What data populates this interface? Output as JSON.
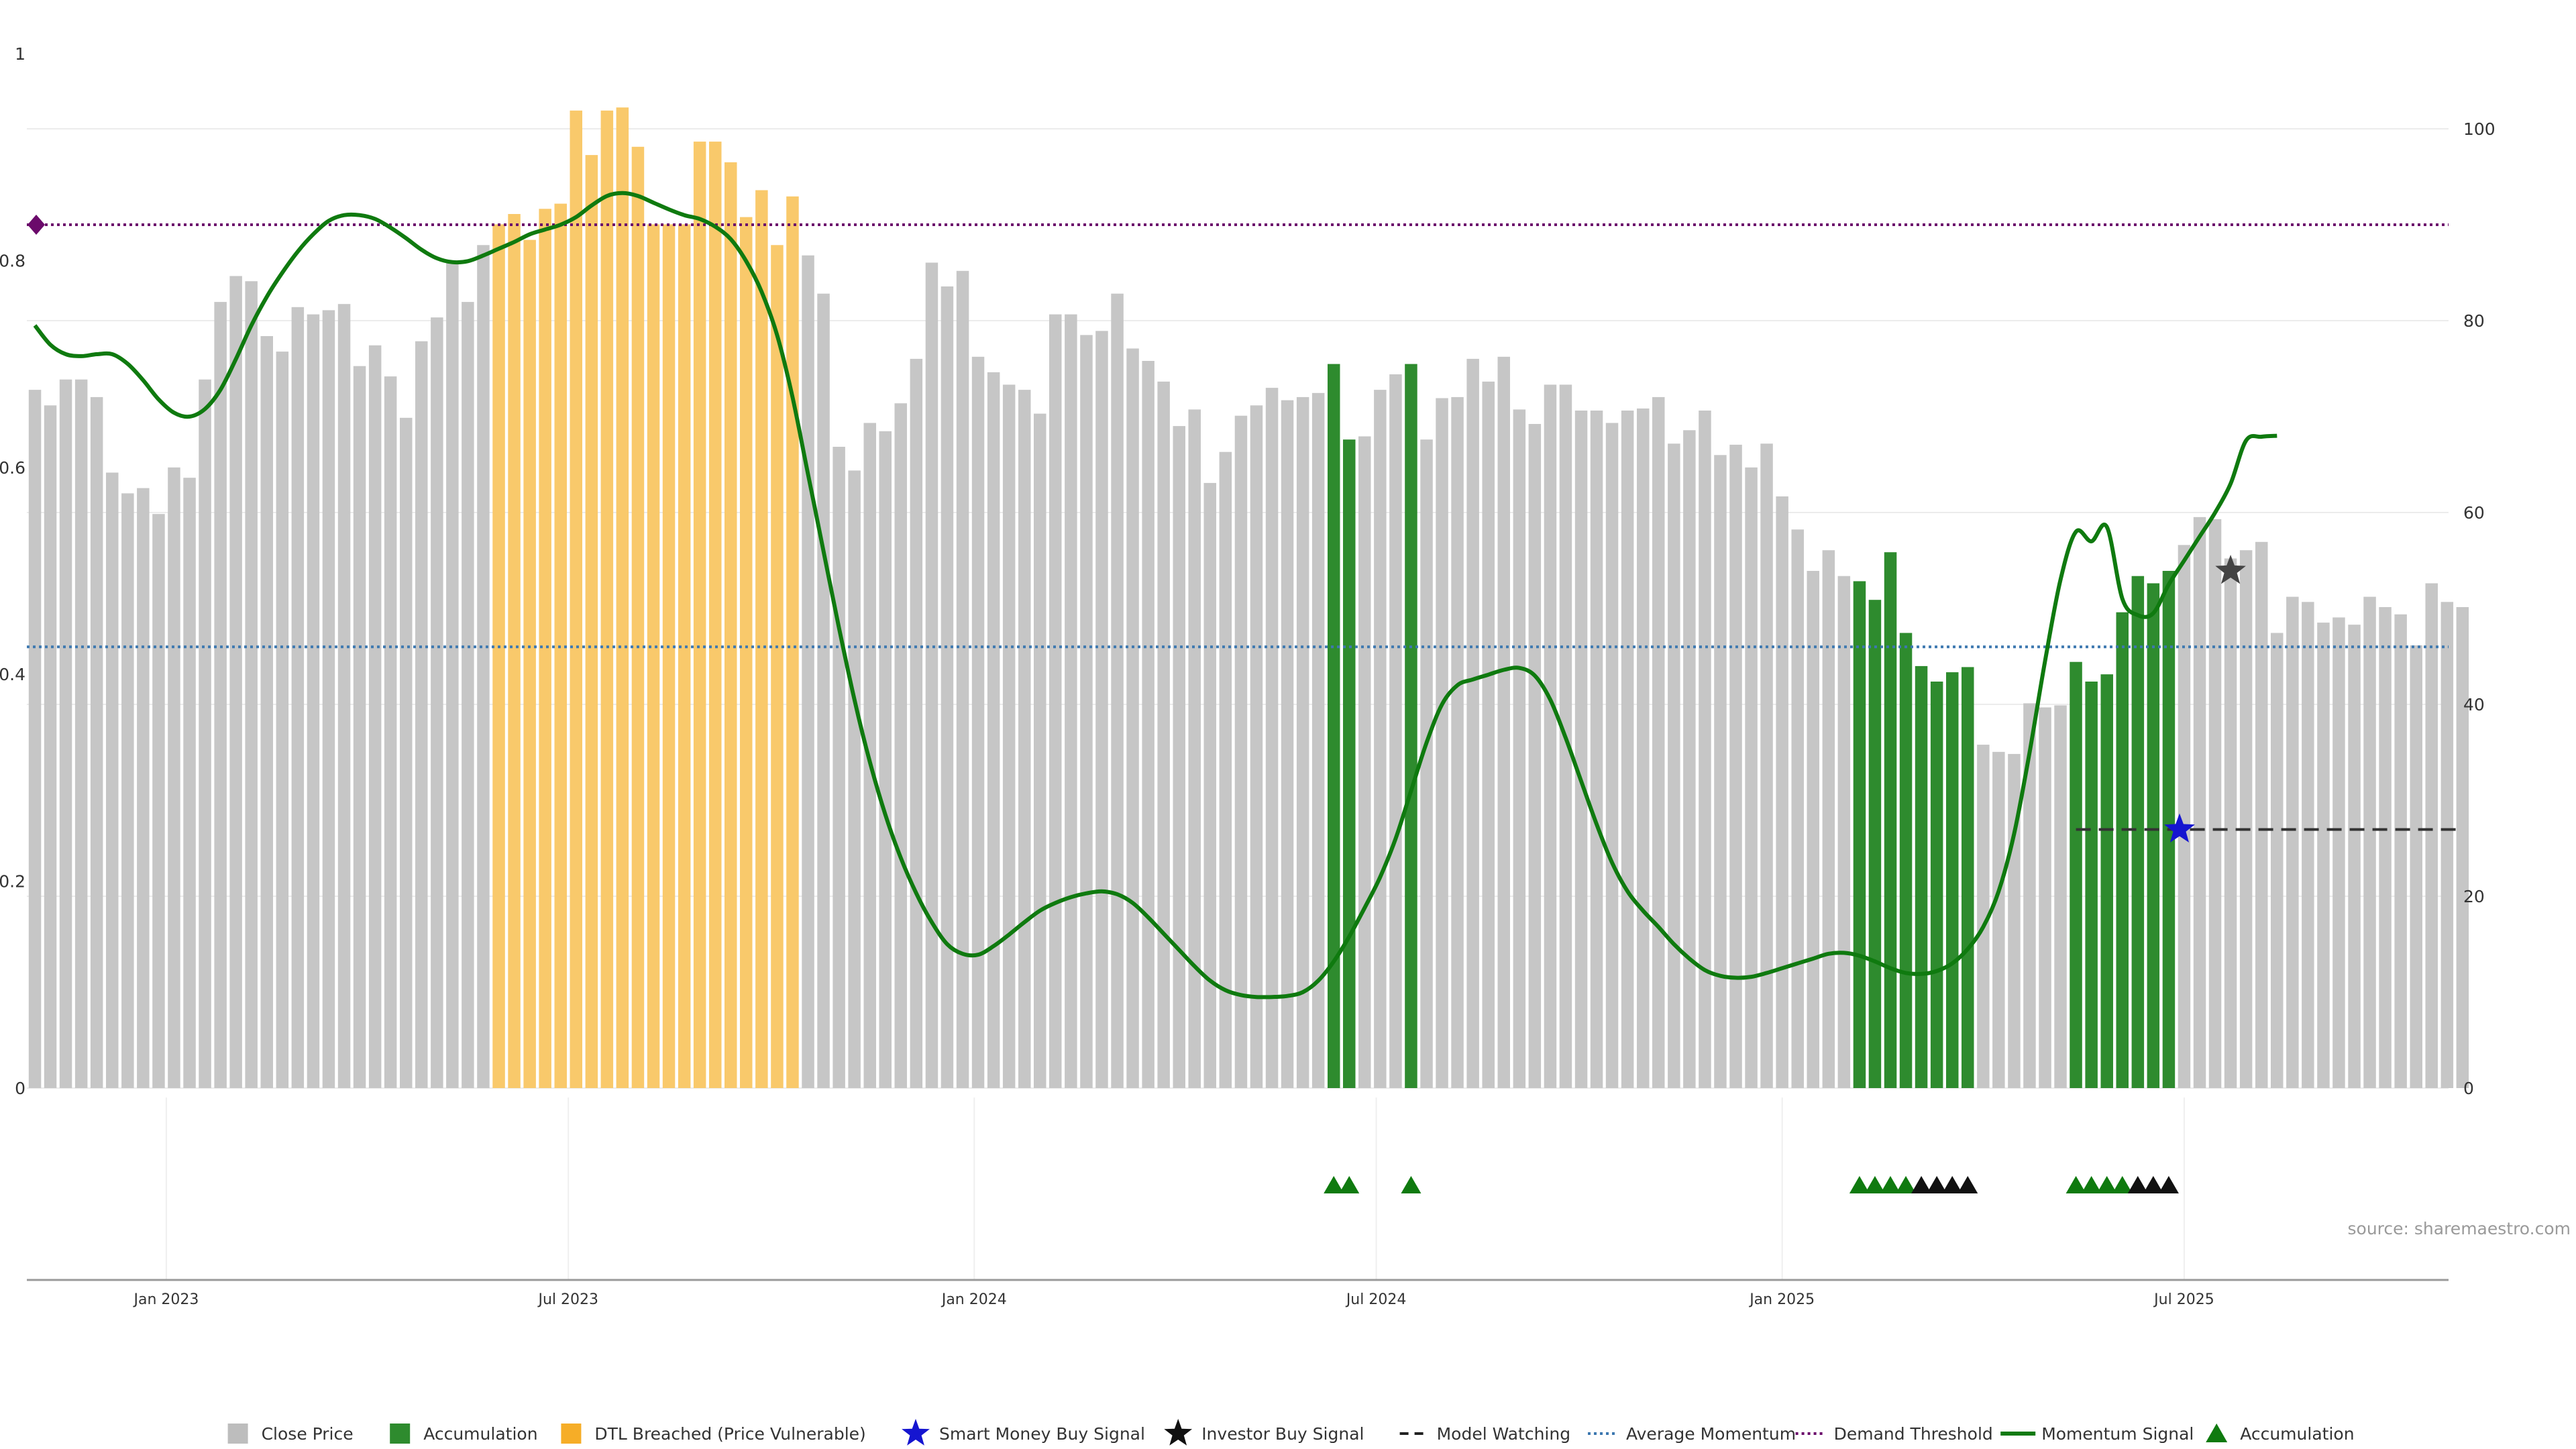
{
  "chart_data": {
    "type": "bar",
    "source": "source: sharemaestro.com",
    "y_left": {
      "min": 0,
      "max": 1,
      "ticks": [
        0,
        0.2,
        0.4,
        0.6,
        0.8,
        1
      ],
      "tick_labels": [
        "0",
        "0.2",
        "0.4",
        "0.6",
        "0.8",
        "1"
      ]
    },
    "y_right": {
      "min": 0,
      "max": 100,
      "ticks": [
        0,
        20,
        40,
        60,
        80,
        100
      ],
      "tick_labels": [
        "0",
        "20",
        "40",
        "60",
        "80",
        "100"
      ]
    },
    "x_ticks": [
      {
        "label": "Jan 2023",
        "index": 8.5
      },
      {
        "label": "Jul 2023",
        "index": 34.5
      },
      {
        "label": "Jan 2024",
        "index": 60.75
      },
      {
        "label": "Jul 2024",
        "index": 86.75
      },
      {
        "label": "Jan 2025",
        "index": 113
      },
      {
        "label": "Jul 2025",
        "index": 139
      }
    ],
    "bar_values": [
      0.675,
      0.66,
      0.685,
      0.685,
      0.668,
      0.595,
      0.575,
      0.58,
      0.555,
      0.6,
      0.59,
      0.685,
      0.76,
      0.785,
      0.78,
      0.727,
      0.712,
      0.755,
      0.748,
      0.752,
      0.758,
      0.698,
      0.718,
      0.688,
      0.648,
      0.722,
      0.745,
      0.8,
      0.76,
      0.815,
      0.835,
      0.845,
      0.82,
      0.85,
      0.855,
      0.945,
      0.902,
      0.945,
      0.948,
      0.91,
      0.835,
      0.835,
      0.835,
      0.915,
      0.915,
      0.895,
      0.842,
      0.868,
      0.815,
      0.862,
      0.805,
      0.768,
      0.62,
      0.597,
      0.643,
      0.635,
      0.662,
      0.705,
      0.798,
      0.775,
      0.79,
      0.707,
      0.692,
      0.68,
      0.675,
      0.652,
      0.748,
      0.748,
      0.728,
      0.732,
      0.768,
      0.715,
      0.703,
      0.683,
      0.64,
      0.656,
      0.585,
      0.615,
      0.65,
      0.66,
      0.677,
      0.665,
      0.668,
      0.672,
      0.7,
      0.627,
      0.63,
      0.675,
      0.69,
      0.7,
      0.627,
      0.667,
      0.668,
      0.705,
      0.683,
      0.707,
      0.656,
      0.642,
      0.68,
      0.68,
      0.655,
      0.655,
      0.643,
      0.655,
      0.657,
      0.668,
      0.623,
      0.636,
      0.655,
      0.612,
      0.622,
      0.6,
      0.623,
      0.572,
      0.54,
      0.5,
      0.52,
      0.495,
      0.49,
      0.472,
      0.518,
      0.44,
      0.408,
      0.393,
      0.402,
      0.407,
      0.332,
      0.325,
      0.323,
      0.372,
      0.368,
      0.37,
      0.412,
      0.393,
      0.4,
      0.46,
      0.495,
      0.488,
      0.5,
      0.525,
      0.552,
      0.55,
      0.512,
      0.52,
      0.528,
      0.44,
      0.475,
      0.47,
      0.45,
      0.455,
      0.448,
      0.475,
      0.465,
      0.458,
      0.428,
      0.488,
      0.47,
      0.465
    ],
    "series": [
      {
        "name": "Close Price",
        "kind": "bar",
        "color": "#c6c6c6",
        "indices": "all other bars"
      },
      {
        "name": "Accumulation",
        "kind": "bar",
        "color": "#2e8b2e",
        "indices": [
          84,
          85,
          89,
          118,
          119,
          120,
          121,
          122,
          123,
          124,
          125,
          132,
          133,
          134,
          135,
          136,
          137,
          138
        ]
      },
      {
        "name": "DTL Breached (Price Vulnerable)",
        "kind": "bar",
        "color": "#f9c96b",
        "indices": [
          30,
          31,
          32,
          33,
          34,
          35,
          36,
          37,
          38,
          39,
          40,
          41,
          42,
          43,
          44,
          45,
          46,
          47,
          48,
          49
        ]
      },
      {
        "name": "Smart Money Buy Signal",
        "kind": "marker",
        "color": "#1515d0",
        "points": [
          {
            "index": 138.7,
            "y": 0.25
          }
        ]
      },
      {
        "name": "Investor Buy Signal",
        "kind": "marker",
        "color": "#111111",
        "points": [
          {
            "index": 142,
            "y": 0.5
          }
        ]
      },
      {
        "name": "Model Watching",
        "kind": "line",
        "color": "#333333",
        "y": 0.25,
        "x_from_index": 132,
        "x_to_index": 157
      },
      {
        "name": "Average Momentum",
        "kind": "hline",
        "color": "#3d78b0",
        "y_right": 46
      },
      {
        "name": "Demand Threshold",
        "kind": "hline",
        "color": "#6b0a6b",
        "y_right": 90
      },
      {
        "name": "Momentum Signal",
        "kind": "line",
        "color": "#0f7a0f",
        "axis": "right",
        "points": [
          [
            0,
            79.5
          ],
          [
            1,
            77.5
          ],
          [
            2,
            76.5
          ],
          [
            3,
            76.3
          ],
          [
            4,
            76.5
          ],
          [
            5,
            76.5
          ],
          [
            6,
            75.5
          ],
          [
            7,
            73.8
          ],
          [
            8,
            71.8
          ],
          [
            9,
            70.4
          ],
          [
            10,
            70
          ],
          [
            11,
            70.8
          ],
          [
            12,
            72.8
          ],
          [
            13,
            76
          ],
          [
            14,
            79.5
          ],
          [
            15,
            82.5
          ],
          [
            16,
            85
          ],
          [
            17,
            87.2
          ],
          [
            18,
            89
          ],
          [
            19,
            90.4
          ],
          [
            20,
            91
          ],
          [
            21,
            91
          ],
          [
            22,
            90.6
          ],
          [
            23,
            89.7
          ],
          [
            24,
            88.6
          ],
          [
            25,
            87.4
          ],
          [
            26,
            86.5
          ],
          [
            27,
            86.1
          ],
          [
            28,
            86.2
          ],
          [
            29,
            86.8
          ],
          [
            30,
            87.5
          ],
          [
            31,
            88.2
          ],
          [
            32,
            89
          ],
          [
            33,
            89.5
          ],
          [
            34,
            90
          ],
          [
            35,
            90.8
          ],
          [
            36,
            92
          ],
          [
            37,
            93
          ],
          [
            38,
            93.3
          ],
          [
            39,
            93
          ],
          [
            40,
            92.3
          ],
          [
            41,
            91.6
          ],
          [
            42,
            91
          ],
          [
            43,
            90.6
          ],
          [
            44,
            89.8
          ],
          [
            45,
            88.5
          ],
          [
            46,
            86.2
          ],
          [
            47,
            83
          ],
          [
            48,
            78.5
          ],
          [
            49,
            72
          ],
          [
            50,
            64
          ],
          [
            51,
            56
          ],
          [
            52,
            48
          ],
          [
            53,
            40.5
          ],
          [
            54,
            34
          ],
          [
            55,
            28.5
          ],
          [
            56,
            24
          ],
          [
            57,
            20.3
          ],
          [
            58,
            17.3
          ],
          [
            59,
            15
          ],
          [
            60,
            14
          ],
          [
            61,
            13.9
          ],
          [
            62,
            14.8
          ],
          [
            63,
            16
          ],
          [
            64,
            17.3
          ],
          [
            65,
            18.5
          ],
          [
            66,
            19.3
          ],
          [
            67,
            19.9
          ],
          [
            68,
            20.3
          ],
          [
            69,
            20.5
          ],
          [
            70,
            20.2
          ],
          [
            71,
            19.3
          ],
          [
            72,
            17.8
          ],
          [
            73,
            16.1
          ],
          [
            74,
            14.4
          ],
          [
            75,
            12.7
          ],
          [
            76,
            11.2
          ],
          [
            77,
            10.2
          ],
          [
            78,
            9.7
          ],
          [
            79,
            9.5
          ],
          [
            80,
            9.5
          ],
          [
            81,
            9.6
          ],
          [
            82,
            10
          ],
          [
            83,
            11.2
          ],
          [
            84,
            13.2
          ],
          [
            85,
            15.8
          ],
          [
            86,
            18.8
          ],
          [
            87,
            22
          ],
          [
            88,
            26
          ],
          [
            89,
            31
          ],
          [
            90,
            36
          ],
          [
            91,
            40
          ],
          [
            92,
            42
          ],
          [
            93,
            42.6
          ],
          [
            94,
            43.1
          ],
          [
            95,
            43.6
          ],
          [
            96,
            43.8
          ],
          [
            97,
            43
          ],
          [
            98,
            40.5
          ],
          [
            99,
            36.5
          ],
          [
            100,
            32
          ],
          [
            101,
            27.5
          ],
          [
            102,
            23.5
          ],
          [
            103,
            20.5
          ],
          [
            104,
            18.5
          ],
          [
            105,
            16.8
          ],
          [
            106,
            15
          ],
          [
            107,
            13.5
          ],
          [
            108,
            12.3
          ],
          [
            109,
            11.7
          ],
          [
            110,
            11.5
          ],
          [
            111,
            11.6
          ],
          [
            112,
            12
          ],
          [
            113,
            12.5
          ],
          [
            114,
            13
          ],
          [
            115,
            13.5
          ],
          [
            116,
            14
          ],
          [
            117,
            14.1
          ],
          [
            118,
            13.8
          ],
          [
            119,
            13.2
          ],
          [
            120,
            12.5
          ],
          [
            121,
            12
          ],
          [
            122,
            11.9
          ],
          [
            123,
            12.2
          ],
          [
            124,
            13
          ],
          [
            125,
            14.5
          ],
          [
            126,
            16.8
          ],
          [
            127,
            20.5
          ],
          [
            128,
            26.5
          ],
          [
            129,
            35
          ],
          [
            130,
            44.5
          ],
          [
            131,
            53
          ],
          [
            132,
            58
          ],
          [
            133,
            57
          ],
          [
            134,
            58.5
          ],
          [
            135,
            51
          ],
          [
            136,
            49.3
          ],
          [
            137,
            49.5
          ],
          [
            138,
            52.5
          ],
          [
            139,
            55
          ],
          [
            140,
            57.5
          ],
          [
            141,
            60
          ],
          [
            142,
            63
          ],
          [
            143,
            67.5
          ],
          [
            144,
            67.9
          ],
          [
            145,
            68
          ]
        ]
      },
      {
        "name": "Accumulation",
        "kind": "marker-row",
        "color": "#0f7a0f",
        "green_indices": [
          84,
          85,
          89,
          118,
          119,
          120,
          121,
          132,
          133,
          134,
          135
        ],
        "black_indices": [
          122,
          123,
          124,
          125,
          136,
          137,
          138
        ]
      }
    ],
    "demand_marker": {
      "y_right": 90,
      "color": "#6b0a6b"
    },
    "legend": [
      {
        "label": "Close Price",
        "symbol": "square",
        "color": "#bdbdbd"
      },
      {
        "label": "Accumulation",
        "symbol": "square",
        "color": "#2e8b2e"
      },
      {
        "label": "DTL Breached (Price Vulnerable)",
        "symbol": "square",
        "color": "#f6ad27"
      },
      {
        "label": "Smart Money Buy Signal",
        "symbol": "star",
        "color": "#1515d0"
      },
      {
        "label": "Investor Buy Signal",
        "symbol": "star",
        "color": "#111111"
      },
      {
        "label": "Model Watching",
        "symbol": "dash",
        "color": "#222222"
      },
      {
        "label": "Average Momentum",
        "symbol": "dot",
        "color": "#3d78b0"
      },
      {
        "label": "Demand Threshold",
        "symbol": "dot",
        "color": "#6b0a6b"
      },
      {
        "label": "Momentum Signal",
        "symbol": "line",
        "color": "#0f7a0f"
      },
      {
        "label": "Accumulation",
        "symbol": "triangle",
        "color": "#0f7a0f"
      }
    ]
  }
}
